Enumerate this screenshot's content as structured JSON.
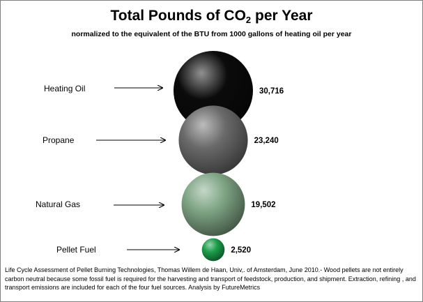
{
  "chart_data": {
    "type": "bubble",
    "title_main": "Total Pounds of CO",
    "title_sub": "2",
    "title_end": " per Year",
    "subtitle": "normalized to the equivalent of the BTU  from 1000 gallons  of heating oil per year",
    "categories": [
      "Heating Oil",
      "Propane",
      "Natural Gas",
      "Pellet Fuel"
    ],
    "values": [
      30716,
      23240,
      19502,
      2520
    ],
    "value_labels": [
      "30,716",
      "23,240",
      "19,502",
      "2,520"
    ],
    "colors": [
      "#0b0b0b",
      "#6a6a6a",
      "#7fa585",
      "#1a9e4a"
    ],
    "legend": "none",
    "grid": false
  },
  "footnote": "Life Cycle Assessment of Pellet Burning Technologies, Thomas Willem de Haan, Univ,. of Amsterdam, June 2010.-  Wood pellets are not entirely carbon neutral because some fossil fuel is required for the harvesting and transport of feedstock, production, and shipment.  Extraction, refining , and transport emissions are included for each of the four fuel sources. Analysis by FutureMetrics"
}
